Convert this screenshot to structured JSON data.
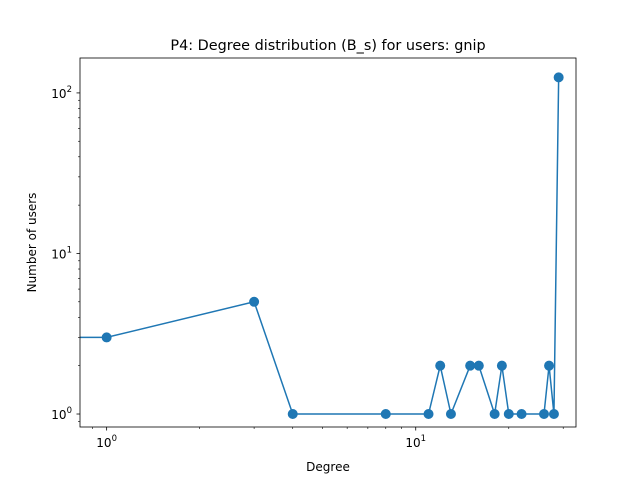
{
  "chart_data": {
    "type": "line",
    "title": "P4: Degree distribution (B_s) for users: gnip",
    "xlabel": "Degree",
    "ylabel": "Number of users",
    "xscale": "log",
    "yscale": "log",
    "xlim": [
      0.82,
      33
    ],
    "ylim": [
      0.83,
      165
    ],
    "grid": false,
    "legend": "none",
    "series_color": "#1f77b4",
    "marker": "circle",
    "x_ticks": [
      {
        "value": 1,
        "base": "10",
        "exp": "0"
      },
      {
        "value": 10,
        "base": "10",
        "exp": "1"
      }
    ],
    "y_ticks": [
      {
        "value": 1,
        "base": "10",
        "exp": "0"
      },
      {
        "value": 10,
        "base": "10",
        "exp": "1"
      },
      {
        "value": 100,
        "base": "10",
        "exp": "2"
      }
    ],
    "x": [
      0,
      1,
      3,
      4,
      8,
      11,
      12,
      13,
      15,
      16,
      18,
      19,
      20,
      22,
      26,
      27,
      28,
      29
    ],
    "y": [
      3,
      3,
      5,
      1,
      1,
      1,
      2,
      1,
      2,
      2,
      1,
      2,
      1,
      1,
      1,
      2,
      1,
      125
    ]
  }
}
